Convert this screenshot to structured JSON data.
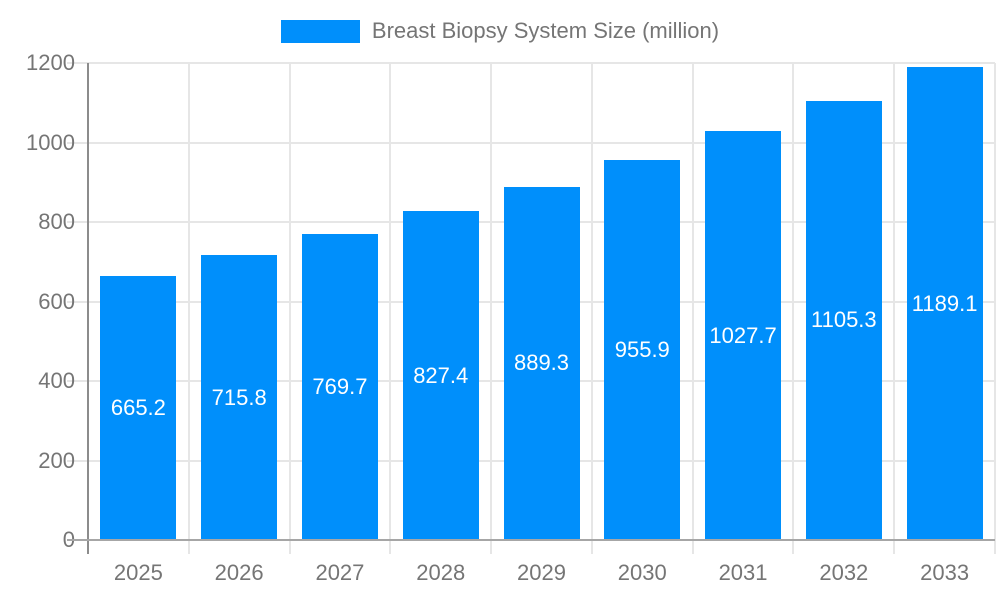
{
  "legend": {
    "label": "Breast Biopsy System Size (million)"
  },
  "chart_data": {
    "type": "bar",
    "title": "Breast Biopsy System Size (million)",
    "categories": [
      "2025",
      "2026",
      "2027",
      "2028",
      "2029",
      "2030",
      "2031",
      "2032",
      "2033"
    ],
    "series": [
      {
        "name": "Breast Biopsy System Size (million)",
        "values": [
          665.2,
          715.8,
          769.7,
          827.4,
          889.3,
          955.9,
          1027.7,
          1105.3,
          1189.1
        ]
      }
    ],
    "value_labels": [
      "665.2",
      "715.8",
      "769.7",
      "827.4",
      "889.3",
      "955.9",
      "1027.7",
      "1105.3",
      "1189.1"
    ],
    "xlabel": "",
    "ylabel": "",
    "ylim": [
      0,
      1200
    ],
    "ytick_step": 200,
    "ytick_labels": [
      "0",
      "200",
      "400",
      "600",
      "800",
      "1000",
      "1200"
    ],
    "grid": true,
    "legend_position": "top",
    "colors": {
      "bar": "#008FFB",
      "value_label": "#ffffff",
      "gridline": "#e6e6e6",
      "x_axis_line": "#a6a6a6",
      "y_axis_line": "#8c8c8c",
      "axis_text": "#757575"
    }
  }
}
